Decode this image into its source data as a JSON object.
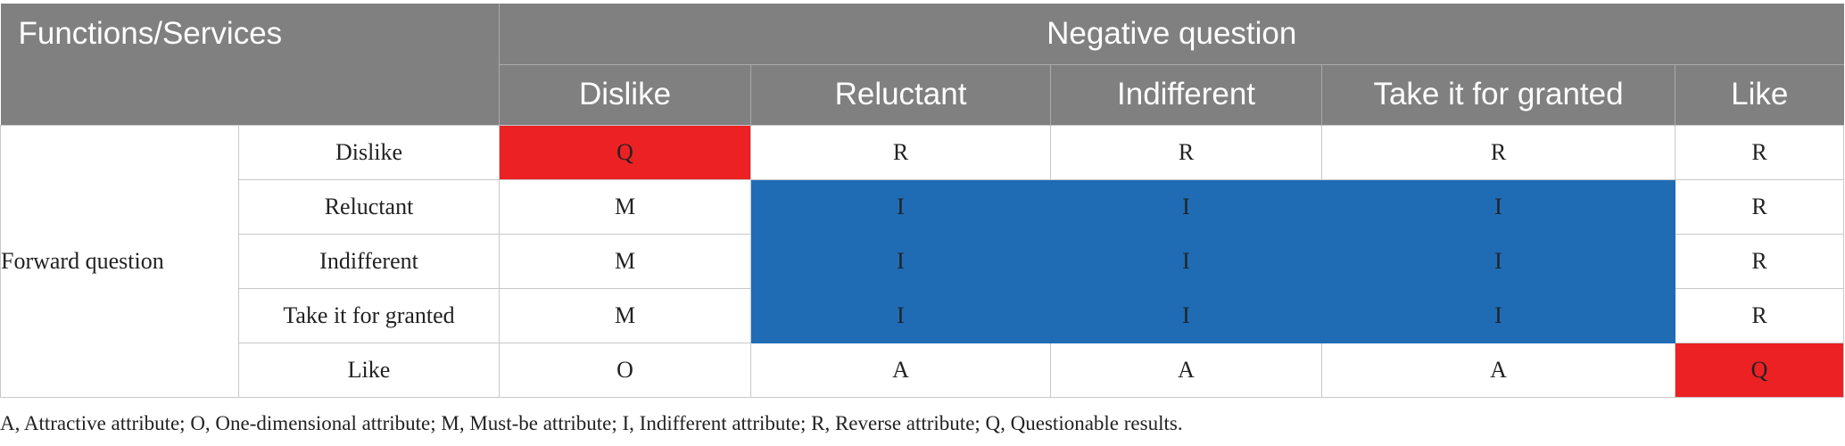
{
  "table": {
    "header_corner": "Functions/Services",
    "negative_question": "Negative question",
    "forward_question": "Forward question",
    "columns": [
      "Dislike",
      "Reluctant",
      "Indifferent",
      "Take it for granted",
      "Like"
    ],
    "rows": [
      {
        "label": "Dislike",
        "cells": [
          "Q",
          "R",
          "R",
          "R",
          "R"
        ]
      },
      {
        "label": "Reluctant",
        "cells": [
          "M",
          "I",
          "I",
          "I",
          "R"
        ]
      },
      {
        "label": "Indifferent",
        "cells": [
          "M",
          "I",
          "I",
          "I",
          "R"
        ]
      },
      {
        "label": "Take it for granted",
        "cells": [
          "M",
          "I",
          "I",
          "I",
          "R"
        ]
      },
      {
        "label": "Like",
        "cells": [
          "O",
          "A",
          "A",
          "A",
          "Q"
        ]
      }
    ]
  },
  "highlight_colors": {
    "questionable": "#ec2124",
    "indifferent": "#1f6cb5",
    "header": "#7f807f"
  },
  "footnote": "A, Attractive attribute; O, One-dimensional attribute; M, Must-be attribute; I, Indifferent attribute; R, Reverse attribute; Q, Questionable results."
}
